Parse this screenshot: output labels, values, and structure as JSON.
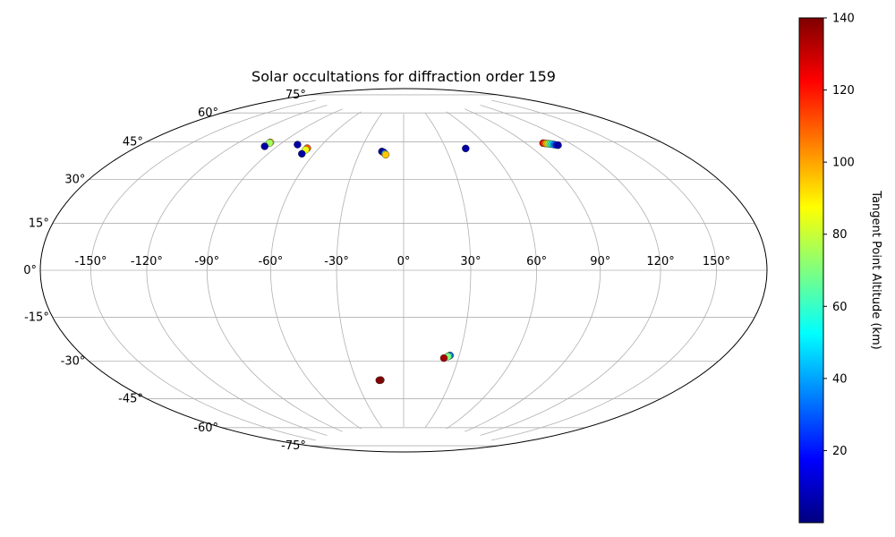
{
  "chart_data": {
    "type": "scatter",
    "projection": "hammer",
    "title": "Solar occultations for diffraction order 159",
    "grid": true,
    "lon_ticks": [
      "-150°",
      "-120°",
      "-90°",
      "-60°",
      "-30°",
      "0°",
      "30°",
      "60°",
      "90°",
      "120°",
      "150°"
    ],
    "lat_ticks": [
      "75°",
      "60°",
      "45°",
      "30°",
      "15°",
      "0°",
      "-15°",
      "-30°",
      "-45°",
      "-60°",
      "-75°"
    ],
    "colorbar": {
      "label": "Tangent Point Altitude (km)",
      "range": [
        0,
        140
      ],
      "ticks": [
        "20",
        "40",
        "60",
        "80",
        "100",
        "120",
        "140"
      ],
      "colormap": "jet"
    },
    "points": [
      {
        "lon": -98.5,
        "lat": 55.5,
        "alt": 95
      },
      {
        "lon": -98.5,
        "lat": 55.2,
        "alt": 75
      },
      {
        "lon": -98.5,
        "lat": 53.5,
        "alt": 5
      },
      {
        "lon": -77.5,
        "lat": 56.0,
        "alt": 5
      },
      {
        "lon": -68.0,
        "lat": 54.8,
        "alt": 110
      },
      {
        "lon": -68.0,
        "lat": 54.0,
        "alt": 85
      },
      {
        "lon": -68.0,
        "lat": 52.0,
        "alt": 5
      },
      {
        "lon": -15.0,
        "lat": 55.0,
        "alt": 3
      },
      {
        "lon": -13.5,
        "lat": 54.5,
        "alt": 10
      },
      {
        "lon": -12.5,
        "lat": 53.8,
        "alt": 60
      },
      {
        "lon": -12.0,
        "lat": 53.4,
        "alt": 95
      },
      {
        "lon": 44.0,
        "lat": 55.8,
        "alt": 5
      },
      {
        "lon": 102.0,
        "lat": 54.8,
        "alt": 125
      },
      {
        "lon": 103.0,
        "lat": 54.6,
        "alt": 110
      },
      {
        "lon": 104.0,
        "lat": 54.4,
        "alt": 95
      },
      {
        "lon": 105.0,
        "lat": 54.2,
        "alt": 80
      },
      {
        "lon": 106.0,
        "lat": 54.0,
        "alt": 65
      },
      {
        "lon": 107.0,
        "lat": 53.8,
        "alt": 50
      },
      {
        "lon": 108.0,
        "lat": 53.5,
        "alt": 35
      },
      {
        "lon": 109.0,
        "lat": 53.2,
        "alt": 20
      },
      {
        "lon": 110.0,
        "lat": 53.0,
        "alt": 5
      },
      {
        "lon": 25.0,
        "lat": -38.5,
        "alt": 30
      },
      {
        "lon": 24.5,
        "lat": -38.8,
        "alt": 50
      },
      {
        "lon": 24.0,
        "lat": -39.0,
        "alt": 70
      },
      {
        "lon": 22.0,
        "lat": -39.8,
        "alt": 135
      },
      {
        "lon": -14.5,
        "lat": -50.5,
        "alt": 135
      },
      {
        "lon": -15.5,
        "lat": -50.6,
        "alt": 140
      }
    ]
  }
}
